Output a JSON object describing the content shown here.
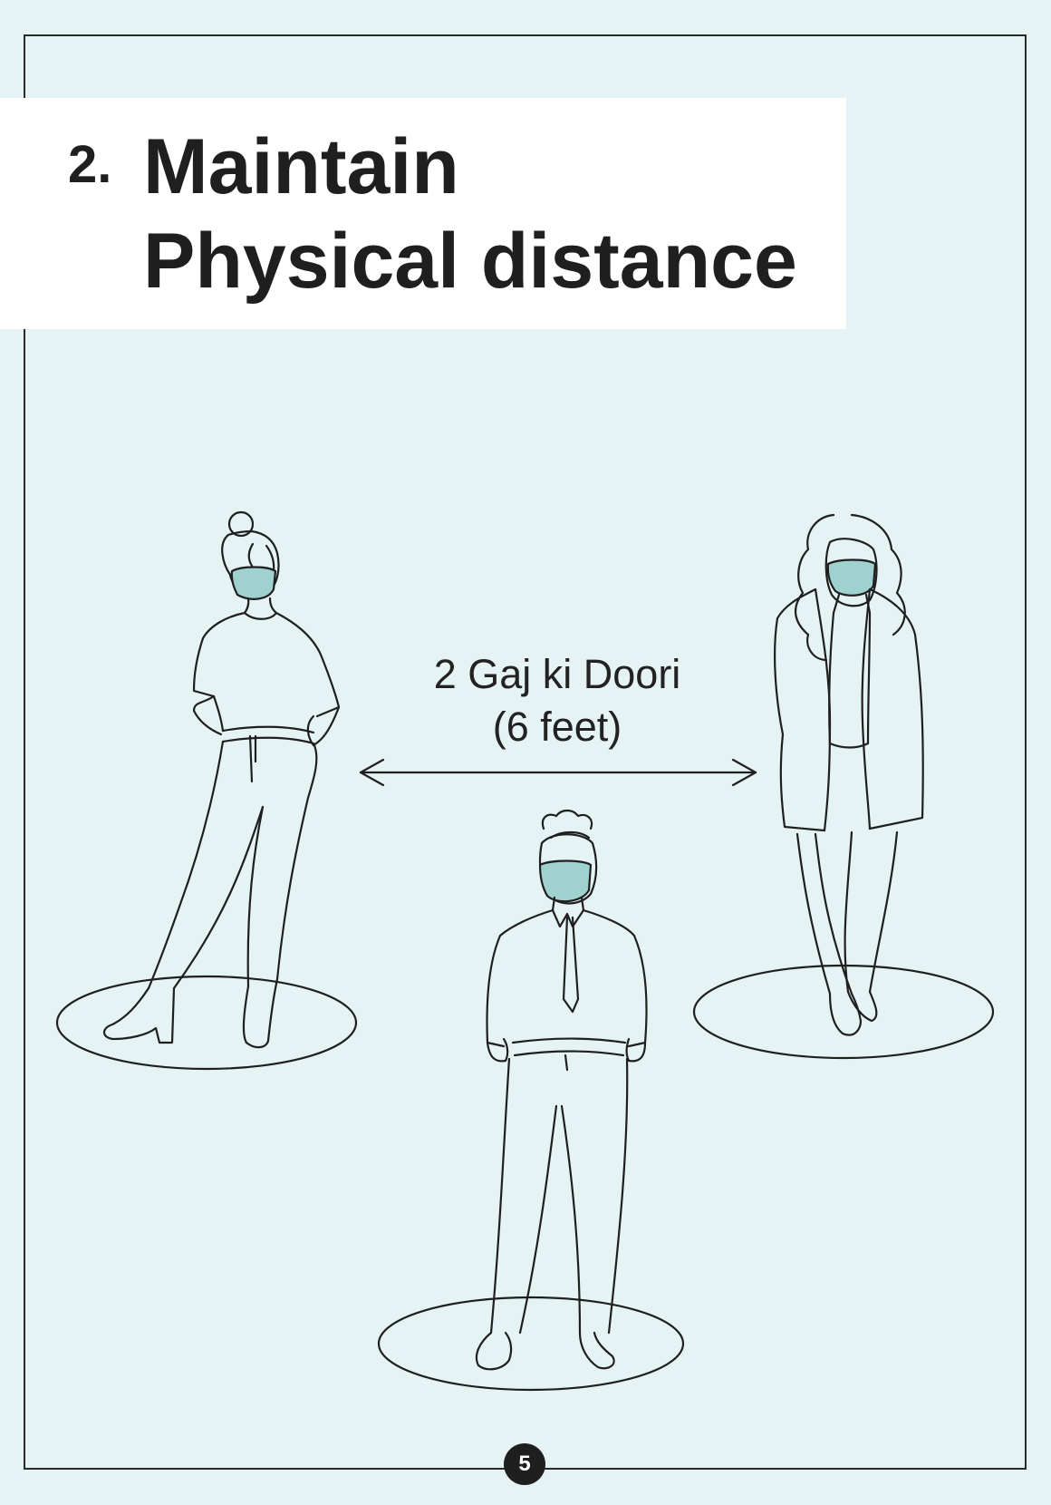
{
  "title": {
    "number": "2.",
    "line1": "Maintain",
    "line2": "Physical distance"
  },
  "distance": {
    "main": "2 Gaj ki Doori",
    "sub": "(6 feet)"
  },
  "page_number": "5",
  "colors": {
    "background": "#e5f3f4",
    "mask": "#9fd1cf",
    "outline": "#1f1f1f",
    "title_box": "#ffffff"
  },
  "icons": {
    "distance_arrow": "double-headed-arrow-icon"
  }
}
